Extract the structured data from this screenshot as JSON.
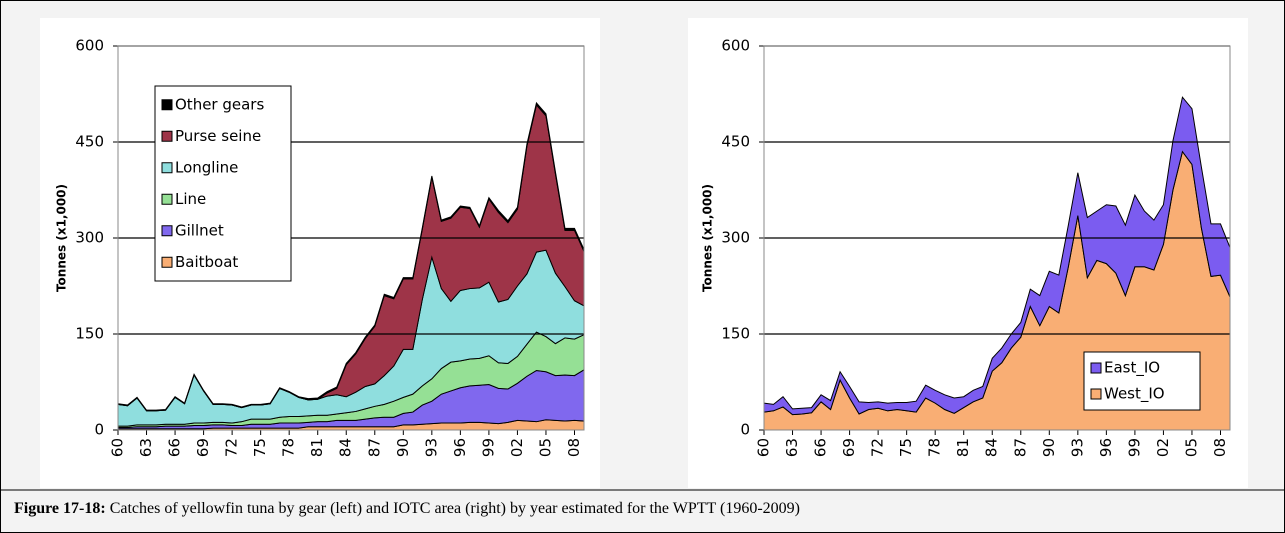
{
  "chart_data": [
    {
      "type": "area",
      "stacked": true,
      "y_label": "Tonnes (x1,000)",
      "legend": "upper left",
      "grid": true,
      "x": [
        1960,
        1961,
        1962,
        1963,
        1964,
        1965,
        1966,
        1967,
        1968,
        1969,
        1970,
        1971,
        1972,
        1973,
        1974,
        1975,
        1976,
        1977,
        1978,
        1979,
        1980,
        1981,
        1982,
        1983,
        1984,
        1985,
        1986,
        1987,
        1988,
        1989,
        1990,
        1991,
        1992,
        1993,
        1994,
        1995,
        1996,
        1997,
        1998,
        1999,
        2000,
        2001,
        2002,
        2003,
        2004,
        2005,
        2006,
        2007,
        2008,
        2009
      ],
      "xlim": [
        1960,
        2009
      ],
      "xticks": [
        {
          "value": 1960,
          "label": "60"
        },
        {
          "value": 1963,
          "label": "63"
        },
        {
          "value": 1966,
          "label": "66"
        },
        {
          "value": 1969,
          "label": "69"
        },
        {
          "value": 1972,
          "label": "72"
        },
        {
          "value": 1975,
          "label": "75"
        },
        {
          "value": 1978,
          "label": "78"
        },
        {
          "value": 1981,
          "label": "81"
        },
        {
          "value": 1984,
          "label": "84"
        },
        {
          "value": 1987,
          "label": "87"
        },
        {
          "value": 1990,
          "label": "90"
        },
        {
          "value": 1993,
          "label": "93"
        },
        {
          "value": 1996,
          "label": "96"
        },
        {
          "value": 1999,
          "label": "99"
        },
        {
          "value": 2002,
          "label": "02"
        },
        {
          "value": 2005,
          "label": "05"
        },
        {
          "value": 2008,
          "label": "08"
        }
      ],
      "ylim": [
        0,
        600
      ],
      "yticks": [
        0,
        150,
        300,
        450,
        600
      ],
      "series": [
        {
          "name": "Baitboat",
          "color": "#f9ae74",
          "values": [
            2,
            2,
            2,
            2,
            2,
            2,
            2,
            2,
            2,
            2,
            3,
            3,
            3,
            3,
            3,
            3,
            3,
            3,
            3,
            3,
            5,
            5,
            5,
            5,
            5,
            5,
            5,
            5,
            5,
            5,
            8,
            8,
            9,
            10,
            11,
            11,
            11,
            12,
            12,
            11,
            10,
            12,
            15,
            14,
            13,
            16,
            15,
            14,
            15,
            14
          ]
        },
        {
          "name": "Gillnet",
          "color": "#8068ee",
          "values": [
            2,
            2,
            3,
            3,
            3,
            4,
            4,
            4,
            5,
            5,
            5,
            5,
            4,
            4,
            6,
            6,
            6,
            8,
            8,
            8,
            7,
            8,
            8,
            10,
            10,
            10,
            12,
            14,
            15,
            15,
            18,
            20,
            30,
            35,
            45,
            50,
            55,
            57,
            58,
            60,
            55,
            52,
            58,
            70,
            80,
            75,
            70,
            72,
            70,
            80
          ]
        },
        {
          "name": "Line",
          "color": "#95e095",
          "values": [
            2,
            2,
            3,
            3,
            3,
            3,
            3,
            3,
            4,
            4,
            4,
            4,
            4,
            6,
            8,
            8,
            8,
            9,
            10,
            10,
            10,
            10,
            10,
            10,
            12,
            14,
            16,
            18,
            20,
            25,
            25,
            28,
            30,
            35,
            40,
            45,
            42,
            42,
            42,
            45,
            40,
            40,
            42,
            50,
            60,
            55,
            50,
            58,
            57,
            55
          ]
        },
        {
          "name": "Longline",
          "color": "#8fdede",
          "values": [
            34,
            32,
            42,
            22,
            22,
            22,
            42,
            32,
            75,
            50,
            28,
            28,
            28,
            22,
            22,
            22,
            24,
            45,
            38,
            30,
            25,
            25,
            30,
            30,
            25,
            30,
            35,
            35,
            45,
            55,
            75,
            70,
            135,
            190,
            125,
            95,
            110,
            110,
            110,
            115,
            95,
            100,
            110,
            110,
            125,
            135,
            110,
            80,
            60,
            45
          ]
        },
        {
          "name": "Purse seine",
          "color": "#9e3448",
          "values": [
            0,
            0,
            0,
            0,
            0,
            0,
            0,
            0,
            0,
            0,
            0,
            0,
            0,
            0,
            0,
            0,
            0,
            0,
            0,
            0,
            0,
            0,
            5,
            10,
            50,
            60,
            75,
            90,
            125,
            105,
            110,
            110,
            110,
            125,
            105,
            130,
            130,
            125,
            95,
            130,
            140,
            120,
            120,
            200,
            230,
            210,
            155,
            88,
            110,
            85
          ]
        },
        {
          "name": "Other gears",
          "color": "#000000",
          "values": [
            1,
            1,
            1,
            1,
            1,
            1,
            1,
            1,
            1,
            1,
            1,
            1,
            1,
            1,
            1,
            1,
            1,
            1,
            1,
            1,
            2,
            2,
            2,
            2,
            2,
            2,
            2,
            2,
            2,
            2,
            2,
            2,
            2,
            2,
            2,
            2,
            2,
            2,
            2,
            2,
            3,
            3,
            3,
            3,
            3,
            3,
            3,
            3,
            3,
            3
          ]
        }
      ]
    },
    {
      "type": "area",
      "stacked": true,
      "y_label": "Tonnes (x1,000)",
      "legend": "lower right",
      "grid": true,
      "x": [
        1960,
        1961,
        1962,
        1963,
        1964,
        1965,
        1966,
        1967,
        1968,
        1969,
        1970,
        1971,
        1972,
        1973,
        1974,
        1975,
        1976,
        1977,
        1978,
        1979,
        1980,
        1981,
        1982,
        1983,
        1984,
        1985,
        1986,
        1987,
        1988,
        1989,
        1990,
        1991,
        1992,
        1993,
        1994,
        1995,
        1996,
        1997,
        1998,
        1999,
        2000,
        2001,
        2002,
        2003,
        2004,
        2005,
        2006,
        2007,
        2008,
        2009
      ],
      "xlim": [
        1960,
        2009
      ],
      "xticks": [
        {
          "value": 1960,
          "label": "60"
        },
        {
          "value": 1963,
          "label": "63"
        },
        {
          "value": 1966,
          "label": "66"
        },
        {
          "value": 1969,
          "label": "69"
        },
        {
          "value": 1972,
          "label": "72"
        },
        {
          "value": 1975,
          "label": "75"
        },
        {
          "value": 1978,
          "label": "78"
        },
        {
          "value": 1981,
          "label": "81"
        },
        {
          "value": 1984,
          "label": "84"
        },
        {
          "value": 1987,
          "label": "87"
        },
        {
          "value": 1990,
          "label": "90"
        },
        {
          "value": 1993,
          "label": "93"
        },
        {
          "value": 1996,
          "label": "96"
        },
        {
          "value": 1999,
          "label": "99"
        },
        {
          "value": 2002,
          "label": "02"
        },
        {
          "value": 2005,
          "label": "05"
        },
        {
          "value": 2008,
          "label": "08"
        }
      ],
      "ylim": [
        0,
        600
      ],
      "yticks": [
        0,
        150,
        300,
        450,
        600
      ],
      "series": [
        {
          "name": "West_IO",
          "color": "#f9ae74",
          "values": [
            28,
            30,
            36,
            24,
            25,
            27,
            44,
            32,
            78,
            50,
            25,
            32,
            34,
            30,
            32,
            30,
            28,
            50,
            42,
            32,
            26,
            35,
            44,
            50,
            92,
            105,
            128,
            145,
            193,
            163,
            193,
            183,
            255,
            335,
            238,
            265,
            260,
            245,
            210,
            255,
            255,
            250,
            290,
            375,
            435,
            415,
            315,
            240,
            242,
            208
          ]
        },
        {
          "name": "East_IO",
          "color": "#7b5cf0",
          "values": [
            14,
            10,
            16,
            9,
            9,
            8,
            11,
            14,
            13,
            18,
            19,
            11,
            10,
            12,
            11,
            13,
            17,
            20,
            20,
            23,
            24,
            17,
            18,
            18,
            20,
            23,
            22,
            23,
            27,
            47,
            55,
            59,
            65,
            67,
            94,
            77,
            92,
            105,
            110,
            112,
            87,
            78,
            62,
            77,
            85,
            87,
            95,
            82,
            80,
            77
          ]
        }
      ]
    }
  ],
  "caption": {
    "label": "Figure 17-18:",
    "text": " Catches of yellowfin tuna by gear (left) and IOTC area (right) by year estimated for the WPTT (1960-2009)"
  }
}
